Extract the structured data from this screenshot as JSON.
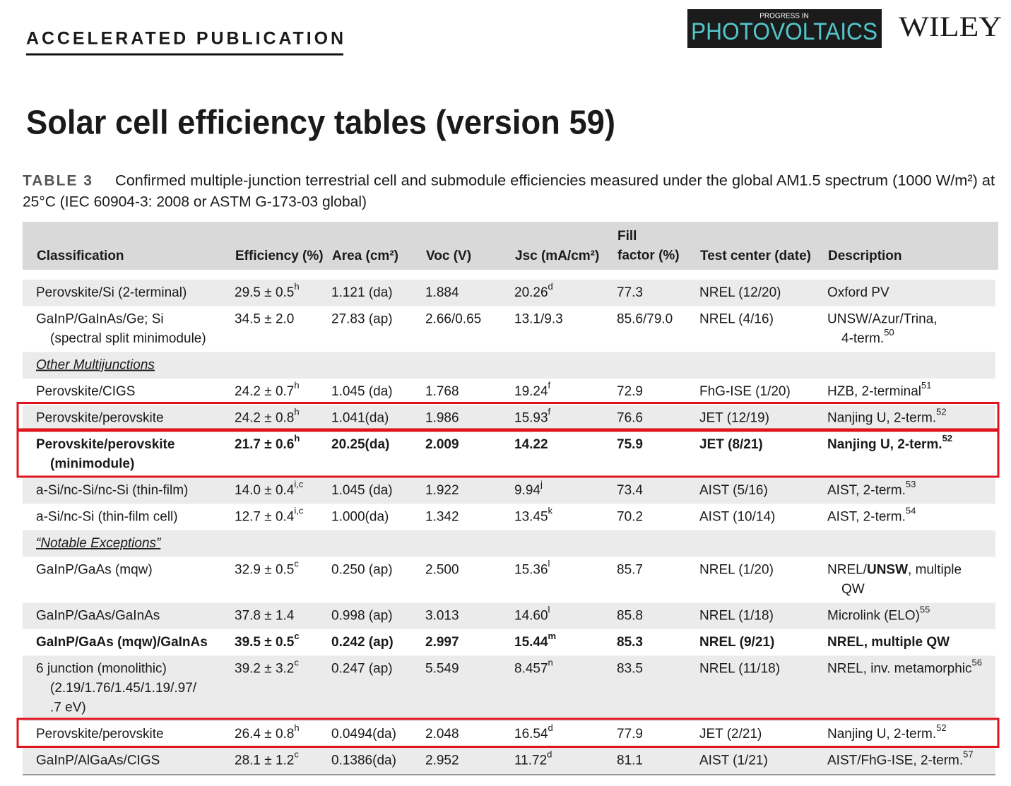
{
  "header": {
    "section_label": "ACCELERATED PUBLICATION",
    "journal_small": "PROGRESS IN",
    "journal": "PHOTOVOLTAICS",
    "publisher": "WILEY"
  },
  "title": "Solar cell efficiency tables (version 59)",
  "table": {
    "label": "TABLE 3",
    "caption": [
      "Confirmed multiple-junction terrestrial cell and submodule efficiencies measured under the global AM1.5 spectrum (1000 W/m²) at",
      "25°C (IEC 60904-3: 2008 or ASTM G-173-03 global)"
    ],
    "columns": [
      "Classification",
      "Efficiency (%)",
      "Area (cm²)",
      "Voc (V)",
      "Jsc (mA/cm²)",
      {
        "lines": [
          "Fill",
          "factor (%)"
        ]
      },
      "Test center (date)",
      "Description"
    ],
    "rows": [
      {
        "cells": [
          "Perovskite/Si (2-terminal)",
          {
            "text": "29.5 ± 0.5",
            "sup": "h"
          },
          "1.121 (da)",
          "1.884",
          {
            "text": "20.26",
            "sup": "d"
          },
          "77.3",
          "NREL (12/20)",
          "Oxford PV"
        ]
      },
      {
        "cells": [
          {
            "lines": [
              "GaInP/GaInAs/Ge; Si",
              "(spectral split minimodule)"
            ]
          },
          "34.5 ± 2.0",
          "27.83 (ap)",
          "2.66/0.65",
          "13.1/9.3",
          "85.6/79.0",
          "NREL (4/16)",
          {
            "lines": [
              "UNSW/Azur/Trina,",
              "4-term."
            ],
            "sup": "50"
          }
        ]
      },
      {
        "section": "Other Multijunctions"
      },
      {
        "cells": [
          "Perovskite/CIGS",
          {
            "text": "24.2 ± 0.7",
            "sup": "h"
          },
          "1.045 (da)",
          "1.768",
          {
            "text": "19.24",
            "sup": "f"
          },
          "72.9",
          "FhG-ISE (1/20)",
          {
            "text": "HZB, 2-terminal",
            "sup": "51"
          }
        ]
      },
      {
        "highlight": true,
        "cells": [
          "Perovskite/perovskite",
          {
            "text": "24.2 ± 0.8",
            "sup": "h"
          },
          "1.041(da)",
          "1.986",
          {
            "text": "15.93",
            "sup": "f"
          },
          "76.6",
          "JET (12/19)",
          {
            "text": "Nanjing U, 2-term.",
            "sup": "52"
          }
        ]
      },
      {
        "highlight": true,
        "bold": true,
        "cells": [
          {
            "lines": [
              "Perovskite/perovskite",
              "(minimodule)"
            ]
          },
          {
            "text": "21.7 ± 0.6",
            "sup": "h"
          },
          "20.25(da)",
          "2.009",
          "14.22",
          "75.9",
          "JET (8/21)",
          {
            "text": "Nanjing U, 2-term.",
            "sup": "52"
          }
        ]
      },
      {
        "cells": [
          "a-Si/nc-Si/nc-Si (thin-film)",
          {
            "text": "14.0 ± 0.4",
            "sup": "i,c"
          },
          "1.045 (da)",
          "1.922",
          {
            "text": "9.94",
            "sup": "j"
          },
          "73.4",
          "AIST (5/16)",
          {
            "text": "AIST, 2-term.",
            "sup": "53"
          }
        ]
      },
      {
        "cells": [
          "a-Si/nc-Si (thin-film cell)",
          {
            "text": "12.7 ± 0.4",
            "sup": "i,c"
          },
          "1.000(da)",
          "1.342",
          {
            "text": "13.45",
            "sup": "k"
          },
          "70.2",
          "AIST (10/14)",
          {
            "text": "AIST, 2-term.",
            "sup": "54"
          }
        ]
      },
      {
        "section": "“Notable Exceptions”"
      },
      {
        "cells": [
          "GaInP/GaAs (mqw)",
          {
            "text": "32.9 ± 0.5",
            "sup": "c"
          },
          "0.250 (ap)",
          "2.500",
          {
            "text": "15.36",
            "sup": "l"
          },
          "85.7",
          "NREL (1/20)",
          {
            "lines": [
              [
                "NREL/",
                {
                  "b": "UNSW"
                },
                ", multiple"
              ],
              "QW"
            ]
          }
        ]
      },
      {
        "cells": [
          "GaInP/GaAs/GaInAs",
          "37.8 ± 1.4",
          "0.998 (ap)",
          "3.013",
          {
            "text": "14.60",
            "sup": "l"
          },
          "85.8",
          "NREL (1/18)",
          {
            "text": "Microlink (ELO)",
            "sup": "55"
          }
        ]
      },
      {
        "bold": true,
        "cells": [
          "GaInP/GaAs (mqw)/GaInAs",
          {
            "text": "39.5 ± 0.5",
            "sup": "c"
          },
          "0.242 (ap)",
          "2.997",
          {
            "text": "15.44",
            "sup": "m"
          },
          "85.3",
          "NREL (9/21)",
          "NREL, multiple QW"
        ]
      },
      {
        "cells": [
          {
            "lines": [
              "6 junction (monolithic)",
              "(2.19/1.76/1.45/1.19/.97/",
              ".7 eV)"
            ]
          },
          {
            "text": "39.2 ± 3.2",
            "sup": "c"
          },
          "0.247 (ap)",
          "5.549",
          {
            "text": "8.457",
            "sup": "n"
          },
          "83.5",
          "NREL (11/18)",
          {
            "text": "NREL, inv. metamorphic",
            "sup": "56"
          }
        ]
      },
      {
        "highlight": true,
        "cells": [
          "Perovskite/perovskite",
          {
            "text": "26.4 ± 0.8",
            "sup": "h"
          },
          "0.0494(da)",
          "2.048",
          {
            "text": "16.54",
            "sup": "d"
          },
          "77.9",
          "JET (2/21)",
          {
            "text": "Nanjing U, 2-term.",
            "sup": "52"
          }
        ]
      },
      {
        "cells": [
          "GaInP/AlGaAs/CIGS",
          {
            "text": "28.1 ± 1.2",
            "sup": "c"
          },
          "0.1386(da)",
          "2.952",
          {
            "text": "11.72",
            "sup": "d"
          },
          "81.1",
          "AIST (1/21)",
          {
            "text": "AIST/FhG-ISE, 2-term.",
            "sup": "57"
          }
        ]
      }
    ]
  }
}
